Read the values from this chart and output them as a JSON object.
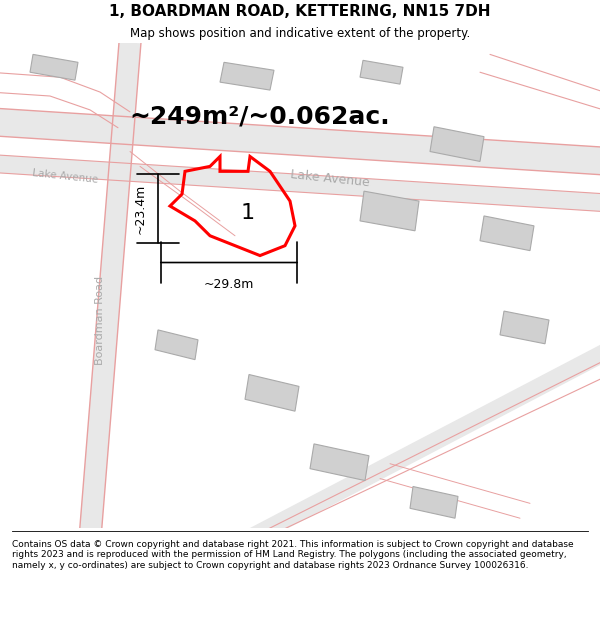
{
  "title": "1, BOARDMAN ROAD, KETTERING, NN15 7DH",
  "subtitle": "Map shows position and indicative extent of the property.",
  "area_text": "~249m²/~0.062ac.",
  "dim_width": "~29.8m",
  "dim_height": "~23.4m",
  "plot_number": "1",
  "footer": "Contains OS data © Crown copyright and database right 2021. This information is subject to Crown copyright and database rights 2023 and is reproduced with the permission of HM Land Registry. The polygons (including the associated geometry, namely x, y co-ordinates) are subject to Crown copyright and database rights 2023 Ordnance Survey 100026316.",
  "bg_color": "#f0f0f0",
  "road_fill": "#e8e8e8",
  "road_line_color": "#e8a0a0",
  "building_color": "#d0d0d0",
  "building_outline": "#aaaaaa",
  "plot_color": "#ff0000",
  "street_label_color": "#aaaaaa",
  "title_fontsize": 11,
  "subtitle_fontsize": 8.5,
  "area_fontsize": 18,
  "footer_fontsize": 6.5
}
